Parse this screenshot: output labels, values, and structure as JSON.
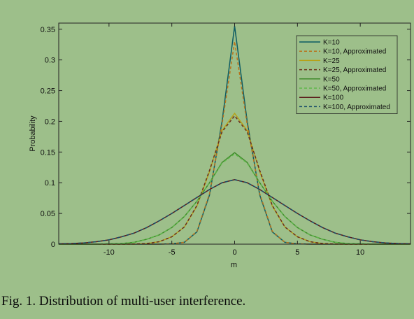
{
  "caption": "Fig. 1.  Distribution of multi-user interference.",
  "chart_data": {
    "type": "line",
    "xlabel": "m",
    "ylabel": "Probability",
    "xlim": [
      -14,
      14
    ],
    "ylim": [
      0,
      0.36
    ],
    "xticks": [
      -10,
      -5,
      0,
      5,
      10
    ],
    "yticks": [
      0,
      0.05,
      0.1,
      0.15,
      0.2,
      0.25,
      0.3,
      0.35
    ],
    "ytick_labels": [
      "0",
      "0.05",
      "0.1",
      "0.15",
      "0.2",
      "0.25",
      "0.3",
      "0.35"
    ],
    "grid": false,
    "legend_position": "top-right",
    "x": [
      -14,
      -13,
      -12,
      -11,
      -10,
      -9,
      -8,
      -7,
      -6,
      -5,
      -4,
      -3,
      -2,
      -1,
      0,
      1,
      2,
      3,
      4,
      5,
      6,
      7,
      8,
      9,
      10,
      11,
      12,
      13,
      14
    ],
    "series": [
      {
        "name": "K=10",
        "color": "#0d5c63",
        "dash": "solid",
        "values": [
          0,
          0,
          0,
          0,
          0,
          0,
          0,
          0,
          0,
          0.0005,
          0.003,
          0.02,
          0.08,
          0.2,
          0.355,
          0.2,
          0.08,
          0.02,
          0.003,
          0.0005,
          0,
          0,
          0,
          0,
          0,
          0,
          0,
          0,
          0
        ]
      },
      {
        "name": "K=10, Approximated",
        "color": "#b8731c",
        "dash": "dashed",
        "values": [
          0,
          0,
          0,
          0,
          0,
          0,
          0,
          0,
          0,
          0.0005,
          0.003,
          0.021,
          0.082,
          0.195,
          0.33,
          0.195,
          0.082,
          0.021,
          0.003,
          0.0005,
          0,
          0,
          0,
          0,
          0,
          0,
          0,
          0,
          0
        ]
      },
      {
        "name": "K=25",
        "color": "#b5a21a",
        "dash": "solid",
        "values": [
          0,
          0,
          0,
          0,
          0,
          0,
          0.0002,
          0.001,
          0.004,
          0.012,
          0.028,
          0.062,
          0.118,
          0.185,
          0.213,
          0.185,
          0.118,
          0.062,
          0.028,
          0.012,
          0.004,
          0.001,
          0.0002,
          0,
          0,
          0,
          0,
          0,
          0
        ]
      },
      {
        "name": "K=25, Approximated",
        "color": "#6b2e1a",
        "dash": "dashed",
        "values": [
          0,
          0,
          0,
          0,
          0,
          0,
          0.0002,
          0.001,
          0.004,
          0.012,
          0.028,
          0.063,
          0.12,
          0.183,
          0.209,
          0.183,
          0.12,
          0.063,
          0.028,
          0.012,
          0.004,
          0.001,
          0.0002,
          0,
          0,
          0,
          0,
          0,
          0
        ]
      },
      {
        "name": "K=50",
        "color": "#3f8a2a",
        "dash": "solid",
        "values": [
          0,
          0,
          0,
          0,
          0.0005,
          0.001,
          0.003,
          0.008,
          0.015,
          0.027,
          0.045,
          0.07,
          0.1,
          0.133,
          0.149,
          0.133,
          0.1,
          0.07,
          0.045,
          0.027,
          0.015,
          0.008,
          0.003,
          0.001,
          0.0005,
          0,
          0,
          0,
          0
        ]
      },
      {
        "name": "K=50, Approximated",
        "color": "#5fb84a",
        "dash": "dashed",
        "values": [
          0,
          0,
          0,
          0,
          0.0005,
          0.001,
          0.003,
          0.008,
          0.015,
          0.027,
          0.045,
          0.07,
          0.1,
          0.132,
          0.147,
          0.132,
          0.1,
          0.07,
          0.045,
          0.027,
          0.015,
          0.008,
          0.003,
          0.001,
          0.0005,
          0,
          0,
          0,
          0
        ]
      },
      {
        "name": "K=100",
        "color": "#5a1a1a",
        "dash": "solid",
        "values": [
          0.0005,
          0.001,
          0.002,
          0.004,
          0.007,
          0.012,
          0.018,
          0.027,
          0.038,
          0.05,
          0.063,
          0.076,
          0.089,
          0.1,
          0.105,
          0.1,
          0.089,
          0.076,
          0.063,
          0.05,
          0.038,
          0.027,
          0.018,
          0.012,
          0.007,
          0.004,
          0.002,
          0.001,
          0.0005
        ]
      },
      {
        "name": "K=100, Approximated",
        "color": "#1a4e6a",
        "dash": "dashed",
        "values": [
          0.0005,
          0.001,
          0.002,
          0.004,
          0.007,
          0.012,
          0.018,
          0.027,
          0.038,
          0.05,
          0.063,
          0.076,
          0.089,
          0.1,
          0.105,
          0.1,
          0.089,
          0.076,
          0.063,
          0.05,
          0.038,
          0.027,
          0.018,
          0.012,
          0.007,
          0.004,
          0.002,
          0.001,
          0.0005
        ]
      }
    ]
  }
}
